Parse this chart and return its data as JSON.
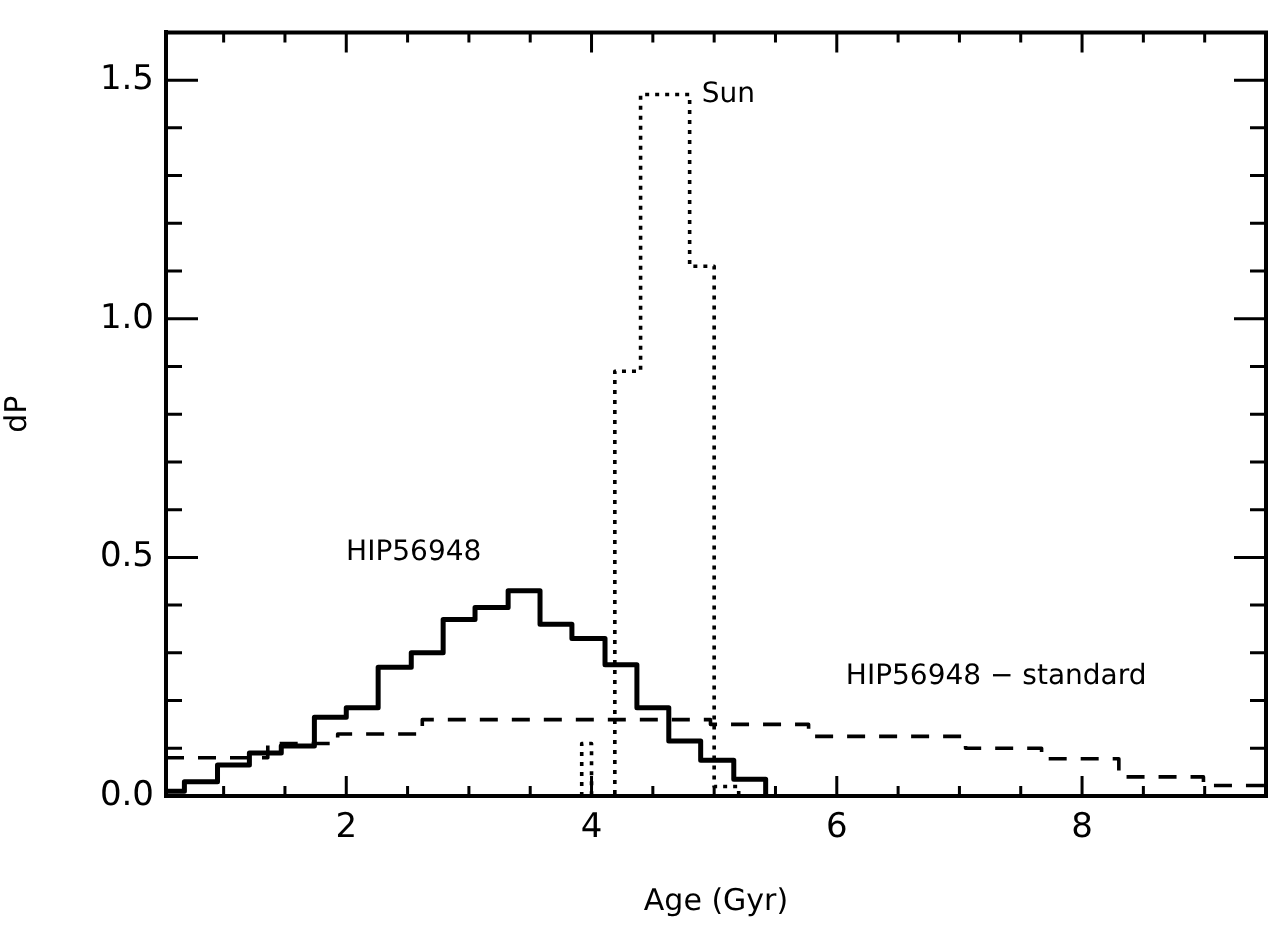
{
  "chart_data": {
    "type": "step",
    "xlabel": "Age (Gyr)",
    "ylabel": "dP",
    "xlim": [
      0.53,
      9.5
    ],
    "ylim": [
      0,
      1.6
    ],
    "xticks": [
      {
        "value": 1,
        "label": null
      },
      {
        "value": 1.5,
        "label": null
      },
      2,
      {
        "value": 2.5,
        "label": null
      },
      {
        "value": 3,
        "label": null
      },
      {
        "value": 3.5,
        "label": null
      },
      4,
      {
        "value": 4.5,
        "label": null
      },
      {
        "value": 5,
        "label": null
      },
      {
        "value": 5.5,
        "label": null
      },
      6,
      {
        "value": 6.5,
        "label": null
      },
      {
        "value": 7,
        "label": null
      },
      {
        "value": 7.5,
        "label": null
      },
      8,
      {
        "value": 8.5,
        "label": null
      },
      {
        "value": 9,
        "label": null
      }
    ],
    "yticks": [
      {
        "value": 0,
        "label": "0.0"
      },
      {
        "value": 0.1,
        "label": null
      },
      {
        "value": 0.2,
        "label": null
      },
      {
        "value": 0.3,
        "label": null
      },
      {
        "value": 0.4,
        "label": null
      },
      {
        "value": 0.5,
        "label": "0.5"
      },
      {
        "value": 0.6,
        "label": null
      },
      {
        "value": 0.7,
        "label": null
      },
      {
        "value": 0.8,
        "label": null
      },
      {
        "value": 0.9,
        "label": null
      },
      {
        "value": 1,
        "label": "1.0"
      },
      {
        "value": 1.1,
        "label": null
      },
      {
        "value": 1.2,
        "label": null
      },
      {
        "value": 1.3,
        "label": null
      },
      {
        "value": 1.4,
        "label": null
      },
      {
        "value": 1.5,
        "label": "1.5"
      }
    ],
    "grid": false,
    "legend": false,
    "series": [
      {
        "name": "HIP56948",
        "color": "#000000",
        "line_style": "solid",
        "x": [
          0.53,
          0.68,
          0.95,
          1.21,
          1.47,
          1.74,
          2.0,
          2.26,
          2.53,
          2.79,
          3.05,
          3.32,
          3.58,
          3.84,
          4.11,
          4.37,
          4.63,
          4.89,
          5.16,
          5.42
        ],
        "values": [
          0.01,
          0.03,
          0.065,
          0.09,
          0.105,
          0.165,
          0.185,
          0.27,
          0.3,
          0.37,
          0.395,
          0.43,
          0.36,
          0.33,
          0.275,
          0.185,
          0.115,
          0.075,
          0.035,
          0
        ]
      },
      {
        "name": "Sun",
        "color": "#000000",
        "line_style": "dotted",
        "x": [
          3.92,
          3.92,
          4.0,
          4.19,
          4.4,
          4.8,
          5.0,
          5.2
        ],
        "values": [
          0,
          0.11,
          0,
          0.89,
          1.47,
          1.11,
          0.02,
          0
        ]
      },
      {
        "name": "HIP56948 − standard",
        "color": "#000000",
        "line_style": "dashed",
        "x": [
          0.53,
          1.36,
          1.93,
          2.62,
          4.97,
          5.77,
          7.05,
          7.67,
          8.3,
          8.99,
          9.5
        ],
        "values": [
          0.08,
          0.11,
          0.13,
          0.16,
          0.15,
          0.125,
          0.1,
          0.078,
          0.04,
          0.022,
          0.022
        ]
      }
    ]
  }
}
